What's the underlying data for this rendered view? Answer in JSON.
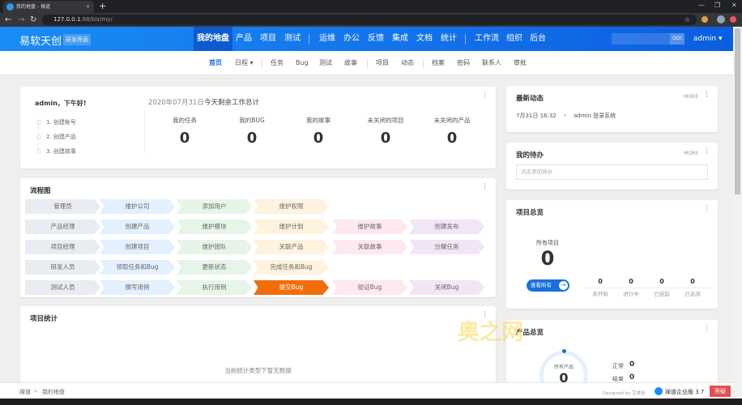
{
  "browser": {
    "tab_title": "我的地盘 - 禅道",
    "url_host": "127.0.0.1",
    "url_rest": ":88/biz/my/"
  },
  "header": {
    "logo": "易软天创",
    "logo_tag": "研发界面",
    "nav": [
      "我的地盘",
      "产品",
      "项目",
      "测试",
      "运维",
      "办公",
      "反馈",
      "集成",
      "文档",
      "统计",
      "工作流",
      "组织",
      "后台"
    ],
    "search_button": "GO!",
    "user": "admin ▾"
  },
  "subnav": [
    "首页",
    "日程 ▾",
    "任务",
    "Bug",
    "测试",
    "故事",
    "项目",
    "动态",
    "档案",
    "密码",
    "联系人",
    "审批"
  ],
  "welcome": {
    "greeting": "admin，下午好!",
    "steps": [
      "1. 创建帐号",
      "2. 创建产品",
      "3. 创建故事"
    ],
    "date": "2020年07月31日",
    "summary": "今天剩余工作总计",
    "stats": [
      {
        "label": "我的任务",
        "value": "0"
      },
      {
        "label": "我的BUG",
        "value": "0"
      },
      {
        "label": "我的故事",
        "value": "0"
      },
      {
        "label": "未关闭的项目",
        "value": "0"
      },
      {
        "label": "未关闭的产品",
        "value": "0"
      }
    ]
  },
  "flow": {
    "title": "流程图",
    "rows": [
      [
        "管理员",
        "维护公司",
        "添加用户",
        "维护权限"
      ],
      [
        "产品经理",
        "创建产品",
        "维护模块",
        "维护计划",
        "维护故事",
        "创建发布"
      ],
      [
        "项目经理",
        "创建项目",
        "维护团队",
        "关联产品",
        "关联故事",
        "分解任务"
      ],
      [
        "研发人员",
        "领取任务和Bug",
        "更新状态",
        "完成任务和Bug"
      ],
      [
        "测试人员",
        "撰写用例",
        "执行用例",
        "提交Bug",
        "验证Bug",
        "关闭Bug"
      ]
    ],
    "highlight": "提交Bug",
    "colors": [
      "#e9ecf0",
      "#e3f0fd",
      "#e7f4e8",
      "#fff2df",
      "#fde9ee",
      "#f1e6f6"
    ],
    "highlight_color": "#f06d0a"
  },
  "project_stats": {
    "title": "项目统计",
    "empty": "当前统计类型下暂无数据"
  },
  "dynamic": {
    "title": "最新动态",
    "more": "MORE",
    "items": [
      {
        "time": "7月31日 16:32",
        "text": "admin 登录系统"
      }
    ]
  },
  "todo": {
    "title": "我的待办",
    "more": "MORE",
    "placeholder": "点击添加待办"
  },
  "project_overview": {
    "title": "项目总览",
    "all_label": "所有项目",
    "all_value": "0",
    "view_all": "查看所有",
    "stats": [
      {
        "label": "未开始",
        "value": "0"
      },
      {
        "label": "进行中",
        "value": "0"
      },
      {
        "label": "已挂起",
        "value": "0"
      },
      {
        "label": "已关闭",
        "value": "0"
      }
    ]
  },
  "product_overview": {
    "title": "产品总览",
    "all_label": "所有产品",
    "all_value": "0",
    "stats": [
      {
        "label": "正常",
        "value": "0"
      },
      {
        "label": "结束",
        "value": "0"
      }
    ]
  },
  "footer": {
    "crumbs": [
      "禅道",
      "我的地盘"
    ],
    "designed": "Designed by 艾体验",
    "brand": "禅道企业版 3.7",
    "bug_button": "答疑"
  },
  "watermark": "奥之网"
}
